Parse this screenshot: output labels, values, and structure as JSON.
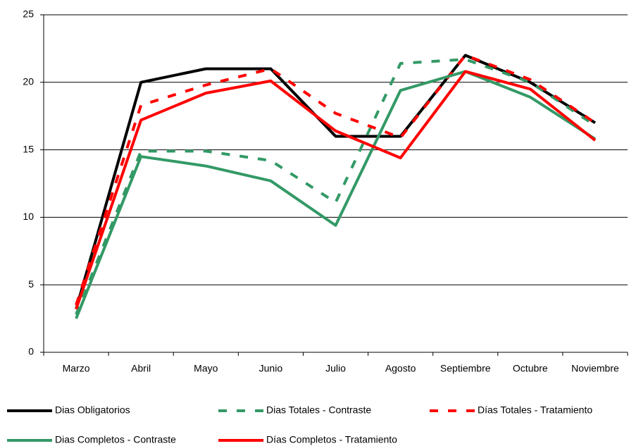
{
  "chart_data": {
    "type": "line",
    "categories": [
      "Marzo",
      "Abril",
      "Mayo",
      "Junio",
      "Julio",
      "Agosto",
      "Septiembre",
      "Octubre",
      "Noviembre"
    ],
    "series": [
      {
        "name": "Dias Obligatorios",
        "color": "#000000",
        "style": "solid",
        "values": [
          3.2,
          20,
          21,
          21,
          16,
          16,
          22,
          20,
          17
        ]
      },
      {
        "name": "Dias Totales - Contraste",
        "color": "#339966",
        "style": "dashed",
        "values": [
          2.8,
          14.9,
          14.9,
          14.2,
          11.1,
          21.4,
          21.7,
          20,
          16.8
        ]
      },
      {
        "name": "Días Totales - Tratamiento",
        "color": "#ff0000",
        "style": "dashed",
        "values": [
          3.5,
          18.3,
          19.8,
          21,
          17.7,
          15.9,
          22,
          20.2,
          17
        ]
      },
      {
        "name": "Dias Completos - Contraste",
        "color": "#339966",
        "style": "solid",
        "values": [
          2.5,
          14.5,
          13.8,
          12.7,
          9.4,
          19.4,
          20.8,
          18.9,
          15.8
        ]
      },
      {
        "name": "Días Completos - Tratamiento",
        "color": "#ff0000",
        "style": "solid",
        "values": [
          3.2,
          17.2,
          19.2,
          20.1,
          16.4,
          14.4,
          20.8,
          19.5,
          15.7
        ]
      }
    ],
    "ylim": [
      0,
      25
    ],
    "yticks": [
      0,
      5,
      10,
      15,
      20,
      25
    ],
    "grid": true
  }
}
